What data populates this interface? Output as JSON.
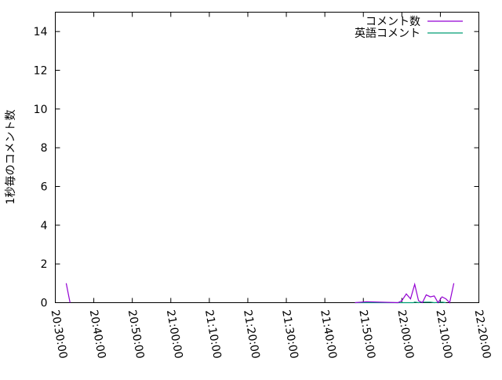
{
  "chart_data": {
    "type": "line",
    "title": "",
    "xlabel": "",
    "ylabel": "1秒毎のコメント数",
    "xlim": [
      "20:30:00",
      "22:20:00"
    ],
    "ylim": [
      0,
      15
    ],
    "x_ticks": [
      "20:30:00",
      "20:40:00",
      "20:50:00",
      "21:00:00",
      "21:10:00",
      "21:20:00",
      "21:30:00",
      "21:40:00",
      "21:50:00",
      "22:00:00",
      "22:10:00",
      "22:20:00"
    ],
    "y_ticks": [
      0,
      2,
      4,
      6,
      8,
      10,
      12,
      14
    ],
    "grid": false,
    "legend": "top-right",
    "series": [
      {
        "name": "コメント数",
        "color": "#9400d3",
        "points": [
          [
            "20:32:50",
            1
          ],
          [
            "20:33:50",
            0
          ],
          [
            "21:47:50",
            0
          ],
          [
            "21:50:50",
            0.05
          ],
          [
            "21:59:00",
            0
          ],
          [
            "22:00:00",
            0.1
          ],
          [
            "22:01:10",
            0.45
          ],
          [
            "22:02:15",
            0.2
          ],
          [
            "22:03:20",
            0.95
          ],
          [
            "22:04:20",
            0.1
          ],
          [
            "22:05:20",
            0
          ],
          [
            "22:06:20",
            0.4
          ],
          [
            "22:07:25",
            0.3
          ],
          [
            "22:08:25",
            0.35
          ],
          [
            "22:09:25",
            0
          ],
          [
            "22:10:25",
            0.3
          ],
          [
            "22:11:25",
            0.2
          ],
          [
            "22:12:25",
            0
          ],
          [
            "22:13:30",
            1
          ]
        ]
      },
      {
        "name": "英語コメント",
        "color": "#009e73",
        "points": [
          [
            "21:47:50",
            0
          ],
          [
            "22:03:00",
            0
          ],
          [
            "22:03:20",
            0.03
          ],
          [
            "22:04:20",
            0
          ],
          [
            "22:05:20",
            0.03
          ],
          [
            "22:07:25",
            0.03
          ],
          [
            "22:08:25",
            0
          ],
          [
            "22:10:25",
            0.03
          ],
          [
            "22:11:25",
            0
          ]
        ]
      }
    ]
  }
}
